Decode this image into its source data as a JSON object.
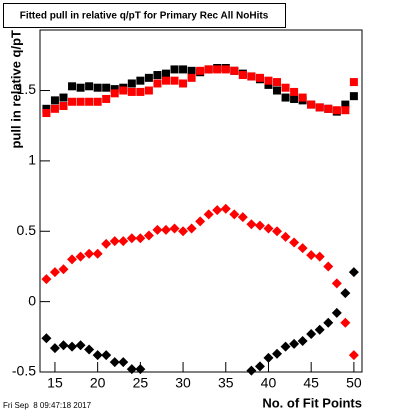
{
  "chart_data": {
    "type": "scatter",
    "title": "Fitted pull in relative q/pT for Primary Rec All NoHits",
    "x_label": "No. of Fit Points",
    "y_label": "pull in relative q/pT",
    "footer": "Fri Sep  8 09:47:18 2017",
    "x": [
      14,
      15,
      16,
      17,
      18,
      19,
      20,
      21,
      22,
      23,
      24,
      25,
      26,
      27,
      28,
      29,
      30,
      31,
      32,
      33,
      34,
      35,
      36,
      37,
      38,
      39,
      40,
      41,
      42,
      43,
      44,
      45,
      46,
      47,
      48,
      49,
      50
    ],
    "series": [
      {
        "color": "#000000",
        "marker": "square",
        "values": [
          1.37,
          1.43,
          1.45,
          1.53,
          1.52,
          1.53,
          1.52,
          1.52,
          1.51,
          1.52,
          1.55,
          1.57,
          1.59,
          1.61,
          1.62,
          1.65,
          1.65,
          1.64,
          1.63,
          1.65,
          1.66,
          1.66,
          1.64,
          1.62,
          1.6,
          1.58,
          1.54,
          1.5,
          1.45,
          1.44,
          1.43,
          1.4,
          1.38,
          1.37,
          1.35,
          1.4,
          1.46
        ]
      },
      {
        "color": "#ff0000",
        "marker": "square",
        "values": [
          1.34,
          1.37,
          1.39,
          1.42,
          1.42,
          1.42,
          1.42,
          1.44,
          1.48,
          1.5,
          1.49,
          1.49,
          1.5,
          1.55,
          1.57,
          1.57,
          1.55,
          1.59,
          1.64,
          1.65,
          1.65,
          1.65,
          1.64,
          1.61,
          1.6,
          1.59,
          1.57,
          1.56,
          1.52,
          1.49,
          1.45,
          1.4,
          1.38,
          1.37,
          1.36,
          1.36,
          1.56
        ]
      },
      {
        "color": "#ff0000",
        "marker": "diamond",
        "values": [
          0.16,
          0.21,
          0.23,
          0.3,
          0.32,
          0.34,
          0.34,
          0.41,
          0.43,
          0.43,
          0.45,
          0.45,
          0.47,
          0.51,
          0.51,
          0.52,
          0.5,
          0.52,
          0.57,
          0.62,
          0.65,
          0.66,
          0.62,
          0.6,
          0.55,
          0.54,
          0.52,
          0.5,
          0.46,
          0.42,
          0.38,
          0.33,
          0.32,
          0.25,
          0.13,
          -0.15,
          -0.38
        ]
      },
      {
        "color": "#000000",
        "marker": "diamond",
        "values": [
          -0.26,
          -0.33,
          -0.31,
          -0.32,
          -0.31,
          -0.34,
          -0.38,
          -0.38,
          -0.43,
          -0.43,
          -0.48,
          -0.48,
          null,
          null,
          null,
          null,
          null,
          null,
          null,
          null,
          null,
          null,
          null,
          null,
          -0.49,
          -0.46,
          -0.4,
          -0.37,
          -0.32,
          -0.3,
          -0.28,
          -0.23,
          -0.2,
          -0.15,
          -0.08,
          0.06,
          0.21
        ]
      }
    ],
    "xlim": [
      13.25,
      50.95
    ],
    "xticks": [
      15,
      20,
      25,
      30,
      35,
      40,
      45,
      50
    ],
    "ylim": [
      -0.5,
      1.93
    ],
    "yticks": [
      -0.5,
      0,
      0.5,
      1,
      1.5
    ]
  }
}
